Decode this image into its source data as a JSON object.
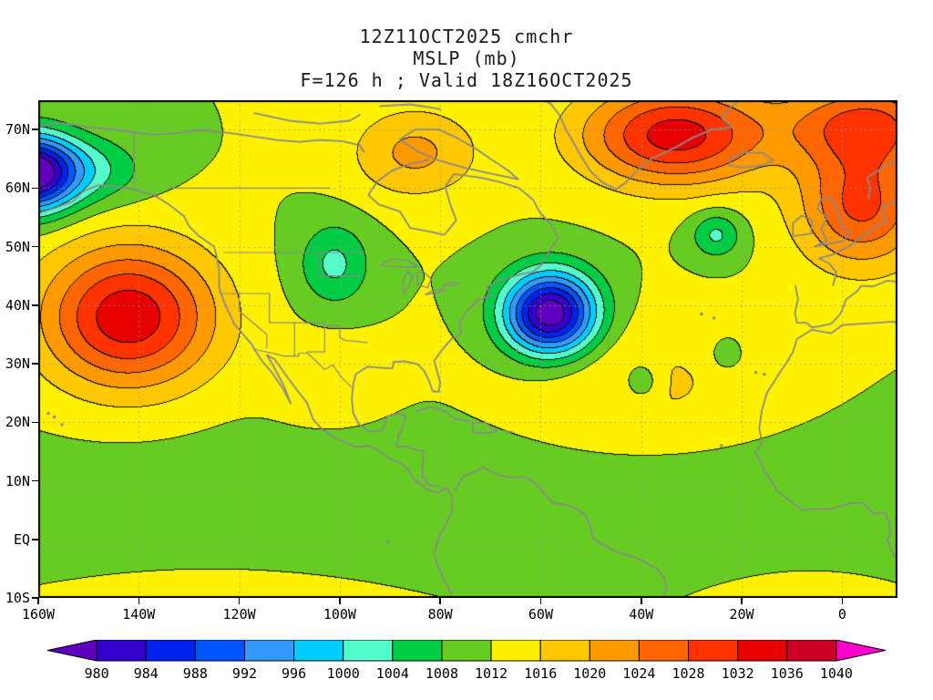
{
  "figure": {
    "title_line1": "12Z11OCT2025 cmchr",
    "title_line2": "MSLP (mb)",
    "title_line3": "F=126 h ; Valid 18Z16OCT2025"
  },
  "axes": {
    "x_ticks": [
      {
        "value": -160,
        "label": "160W"
      },
      {
        "value": -140,
        "label": "140W"
      },
      {
        "value": -120,
        "label": "120W"
      },
      {
        "value": -100,
        "label": "100W"
      },
      {
        "value": -80,
        "label": "80W"
      },
      {
        "value": -60,
        "label": "60W"
      },
      {
        "value": -40,
        "label": "40W"
      },
      {
        "value": -20,
        "label": "20W"
      },
      {
        "value": 0,
        "label": "0"
      }
    ],
    "y_ticks": [
      {
        "value": 70,
        "label": "70N"
      },
      {
        "value": 60,
        "label": "60N"
      },
      {
        "value": 50,
        "label": "50N"
      },
      {
        "value": 40,
        "label": "40N"
      },
      {
        "value": 30,
        "label": "30N"
      },
      {
        "value": 20,
        "label": "20N"
      },
      {
        "value": 10,
        "label": "10N"
      },
      {
        "value": 0,
        "label": "EQ"
      },
      {
        "value": -10,
        "label": "10S"
      }
    ]
  },
  "colorbar": {
    "units": "mb",
    "levels": [
      980,
      984,
      988,
      992,
      996,
      1000,
      1004,
      1008,
      1012,
      1016,
      1020,
      1024,
      1028,
      1032,
      1036,
      1040
    ],
    "tick_labels": [
      "980",
      "984",
      "988",
      "992",
      "996",
      "1000",
      "1004",
      "1008",
      "1012",
      "1016",
      "1020",
      "1024",
      "1028",
      "1032",
      "1036",
      "1040"
    ],
    "color_under": "#5F00BF",
    "segment_colors": [
      "#3300CC",
      "#0022EE",
      "#0055FF",
      "#3399FF",
      "#00CCFF",
      "#55FFCC",
      "#00CC44",
      "#66CC22",
      "#FFF200",
      "#FFC800",
      "#FF9900",
      "#FF6600",
      "#FF3300",
      "#E60000",
      "#CC0022"
    ],
    "color_over": "#FF00CC"
  },
  "chart_data": {
    "type": "heatmap",
    "subtype": "filled-contour-map",
    "variable": "MSLP",
    "units": "mb",
    "contour_interval_mb": 4,
    "model": "cmchr",
    "init_time": "12Z11OCT2025",
    "forecast_hour": 126,
    "valid_time": "18Z16OCT2025",
    "lon_range": [
      -160,
      11
    ],
    "lat_range": [
      -10,
      75
    ],
    "base_pressure_mb": 1012,
    "features": [
      {
        "name": "aleutian-low",
        "type": "low",
        "center_mb": 975,
        "lon": -162,
        "lat": 62.5,
        "amp": -37,
        "sx": 6.5,
        "sy": 4.5
      },
      {
        "name": "gulf-of-alaska-trough",
        "type": "low",
        "center_mb": 1004,
        "lon": -150,
        "lat": 63,
        "amp": -8,
        "sx": 8,
        "sy": 4
      },
      {
        "name": "northeast-pacific-high",
        "type": "high",
        "center_mb": 1035,
        "lon": -142,
        "lat": 38,
        "amp": 23,
        "sx": 12,
        "sy": 8.5
      },
      {
        "name": "west-atlantic-low",
        "type": "low",
        "center_mb": 976,
        "lon": -58,
        "lat": 38.5,
        "amp": -36,
        "sx": 6.5,
        "sy": 5
      },
      {
        "name": "greenland-high",
        "type": "high",
        "center_mb": 1034,
        "lon": -33,
        "lat": 69,
        "amp": 22,
        "sx": 13,
        "sy": 6
      },
      {
        "name": "scandinavia-high",
        "type": "high",
        "center_mb": 1028,
        "lon": 5,
        "lat": 71,
        "amp": 16,
        "sx": 11,
        "sy": 5
      },
      {
        "name": "northeast-atlantic-high",
        "type": "high",
        "center_mb": 1029,
        "lon": 4,
        "lat": 57,
        "amp": 17,
        "sx": 9,
        "sy": 7.5
      },
      {
        "name": "hudson-bay-ridge",
        "type": "high",
        "center_mb": 1021,
        "lon": -85,
        "lat": 66,
        "amp": 9,
        "sx": 9,
        "sy": 5.5
      },
      {
        "name": "northern-plains-low",
        "type": "low",
        "center_mb": 1003,
        "lon": -101,
        "lat": 47,
        "amp": -9,
        "sx": 5,
        "sy": 5
      },
      {
        "name": "mid-atlantic-low",
        "type": "low",
        "center_mb": 1003,
        "lon": -25,
        "lat": 52,
        "amp": -9,
        "sx": 3.5,
        "sy": 2.8
      },
      {
        "name": "subtropical-atlantic-low",
        "type": "low",
        "center_mb": 1005,
        "lon": -40,
        "lat": 27,
        "amp": -7,
        "sx": 2.6,
        "sy": 2.4
      },
      {
        "name": "canary-low",
        "type": "low",
        "center_mb": 1007,
        "lon": -23,
        "lat": 31.5,
        "amp": -5,
        "sx": 2.2,
        "sy": 2
      },
      {
        "name": "azores-ridge",
        "type": "high",
        "center_mb": 1017,
        "lon": -40,
        "lat": 26,
        "amp": 5,
        "sx": 18,
        "sy": 8
      },
      {
        "name": "mexico-ridge",
        "type": "high",
        "center_mb": 1016,
        "lon": -102,
        "lat": 27,
        "amp": 3.5,
        "sx": 8,
        "sy": 5
      },
      {
        "name": "south-pacific-high",
        "type": "high",
        "center_mb": 1021,
        "lon": -120,
        "lat": -22,
        "amp": 9,
        "sx": 26,
        "sy": 9
      },
      {
        "name": "south-atlantic-high",
        "type": "high",
        "center_mb": 1018,
        "lon": -8,
        "lat": -20,
        "amp": 6,
        "sx": 16,
        "sy": 9
      },
      {
        "name": "itcz-trough",
        "type": "low",
        "center_mb": 1009,
        "lon": -60,
        "lat": 4,
        "amp": -3,
        "sx": 90,
        "sy": 10
      }
    ]
  }
}
